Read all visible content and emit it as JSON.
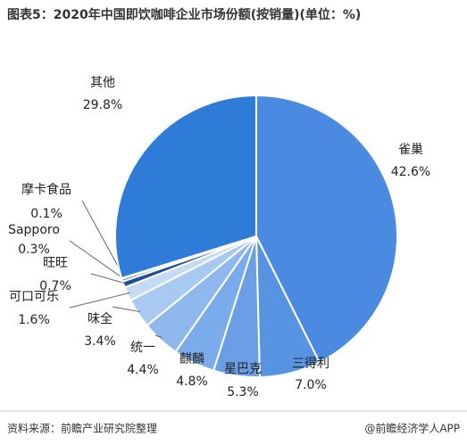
{
  "chart_data": {
    "type": "pie",
    "title": "图表5：2020年中国即饮咖啡企业市场份额(按销量)(单位：%)",
    "categories": [
      "雀巢",
      "三得利",
      "星巴克",
      "麒麟",
      "统一",
      "味全",
      "可口可乐",
      "旺旺",
      "Sapporo",
      "摩卡食品",
      "其他"
    ],
    "values": [
      42.6,
      7.0,
      5.3,
      4.8,
      4.4,
      3.4,
      1.6,
      0.7,
      0.3,
      0.1,
      29.8
    ],
    "value_labels": [
      "42.6%",
      "7.0%",
      "5.3%",
      "4.8%",
      "4.4%",
      "3.4%",
      "1.6%",
      "0.7%",
      "0.3%",
      "0.1%",
      "29.8%"
    ],
    "colors": [
      "#4a8ae0",
      "#5893e2",
      "#6a9fe6",
      "#7aabea",
      "#8fb9ee",
      "#a8c9f2",
      "#c4dbf6",
      "#1f4e99",
      "#2a5fb0",
      "#3a70c5",
      "#2f7bd8"
    ],
    "source": "资料来源：前瞻产业研究院整理",
    "footer": "@前瞻经济学人APP"
  }
}
